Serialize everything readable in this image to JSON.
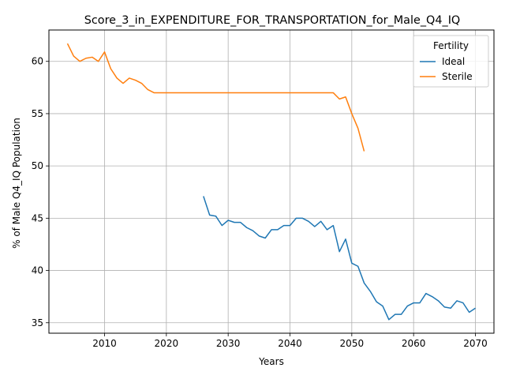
{
  "chart_data": {
    "type": "line",
    "title": "Score_3_in_EXPENDITURE_FOR_TRANSPORTATION_for_Male_Q4_IQ",
    "xlabel": "Years",
    "ylabel": "% of Male Q4_IQ Population",
    "xlim": [
      2001,
      2073
    ],
    "ylim": [
      34.0,
      63.0
    ],
    "xticks": [
      2010,
      2020,
      2030,
      2040,
      2050,
      2060,
      2070
    ],
    "yticks": [
      35,
      40,
      45,
      50,
      55,
      60
    ],
    "grid": true,
    "legend": {
      "title": "Fertility",
      "position": "top-right"
    },
    "series": [
      {
        "name": "Ideal",
        "color": "#1f77b4",
        "x": [
          2026,
          2027,
          2028,
          2029,
          2030,
          2031,
          2032,
          2033,
          2034,
          2035,
          2036,
          2037,
          2038,
          2039,
          2040,
          2041,
          2042,
          2043,
          2044,
          2045,
          2046,
          2047,
          2048,
          2049,
          2050,
          2051,
          2052,
          2053,
          2054,
          2055,
          2056,
          2057,
          2058,
          2059,
          2060,
          2061,
          2062,
          2063,
          2064,
          2065,
          2066,
          2067,
          2068,
          2069,
          2070
        ],
        "y": [
          47.1,
          45.3,
          45.2,
          44.3,
          44.8,
          44.6,
          44.6,
          44.1,
          43.8,
          43.3,
          43.1,
          43.9,
          43.9,
          44.3,
          44.3,
          45.0,
          45.0,
          44.7,
          44.2,
          44.7,
          43.9,
          44.3,
          41.8,
          43.0,
          40.7,
          40.4,
          38.8,
          38.0,
          37.0,
          36.6,
          35.3,
          35.8,
          35.8,
          36.6,
          36.9,
          36.9,
          37.8,
          37.5,
          37.1,
          36.5,
          36.4,
          37.1,
          36.9,
          36.0,
          36.4
        ]
      },
      {
        "name": "Sterile",
        "color": "#ff7f0e",
        "x": [
          2004,
          2005,
          2006,
          2007,
          2008,
          2009,
          2010,
          2011,
          2012,
          2013,
          2014,
          2015,
          2016,
          2017,
          2018,
          2019,
          2020,
          2021,
          2022,
          2023,
          2024,
          2025,
          2026,
          2027,
          2028,
          2029,
          2030,
          2031,
          2032,
          2033,
          2034,
          2035,
          2036,
          2037,
          2038,
          2039,
          2040,
          2041,
          2042,
          2043,
          2044,
          2045,
          2046,
          2047,
          2048,
          2049,
          2050,
          2051,
          2052
        ],
        "y": [
          61.7,
          60.5,
          60.0,
          60.3,
          60.4,
          60.0,
          60.9,
          59.3,
          58.4,
          57.9,
          58.4,
          58.2,
          57.9,
          57.3,
          57.0,
          57.0,
          57.0,
          57.0,
          57.0,
          57.0,
          57.0,
          57.0,
          57.0,
          57.0,
          57.0,
          57.0,
          57.0,
          57.0,
          57.0,
          57.0,
          57.0,
          57.0,
          57.0,
          57.0,
          57.0,
          57.0,
          57.0,
          57.0,
          57.0,
          57.0,
          57.0,
          57.0,
          57.0,
          57.0,
          56.4,
          56.6,
          55.0,
          53.6,
          51.4
        ]
      }
    ]
  }
}
